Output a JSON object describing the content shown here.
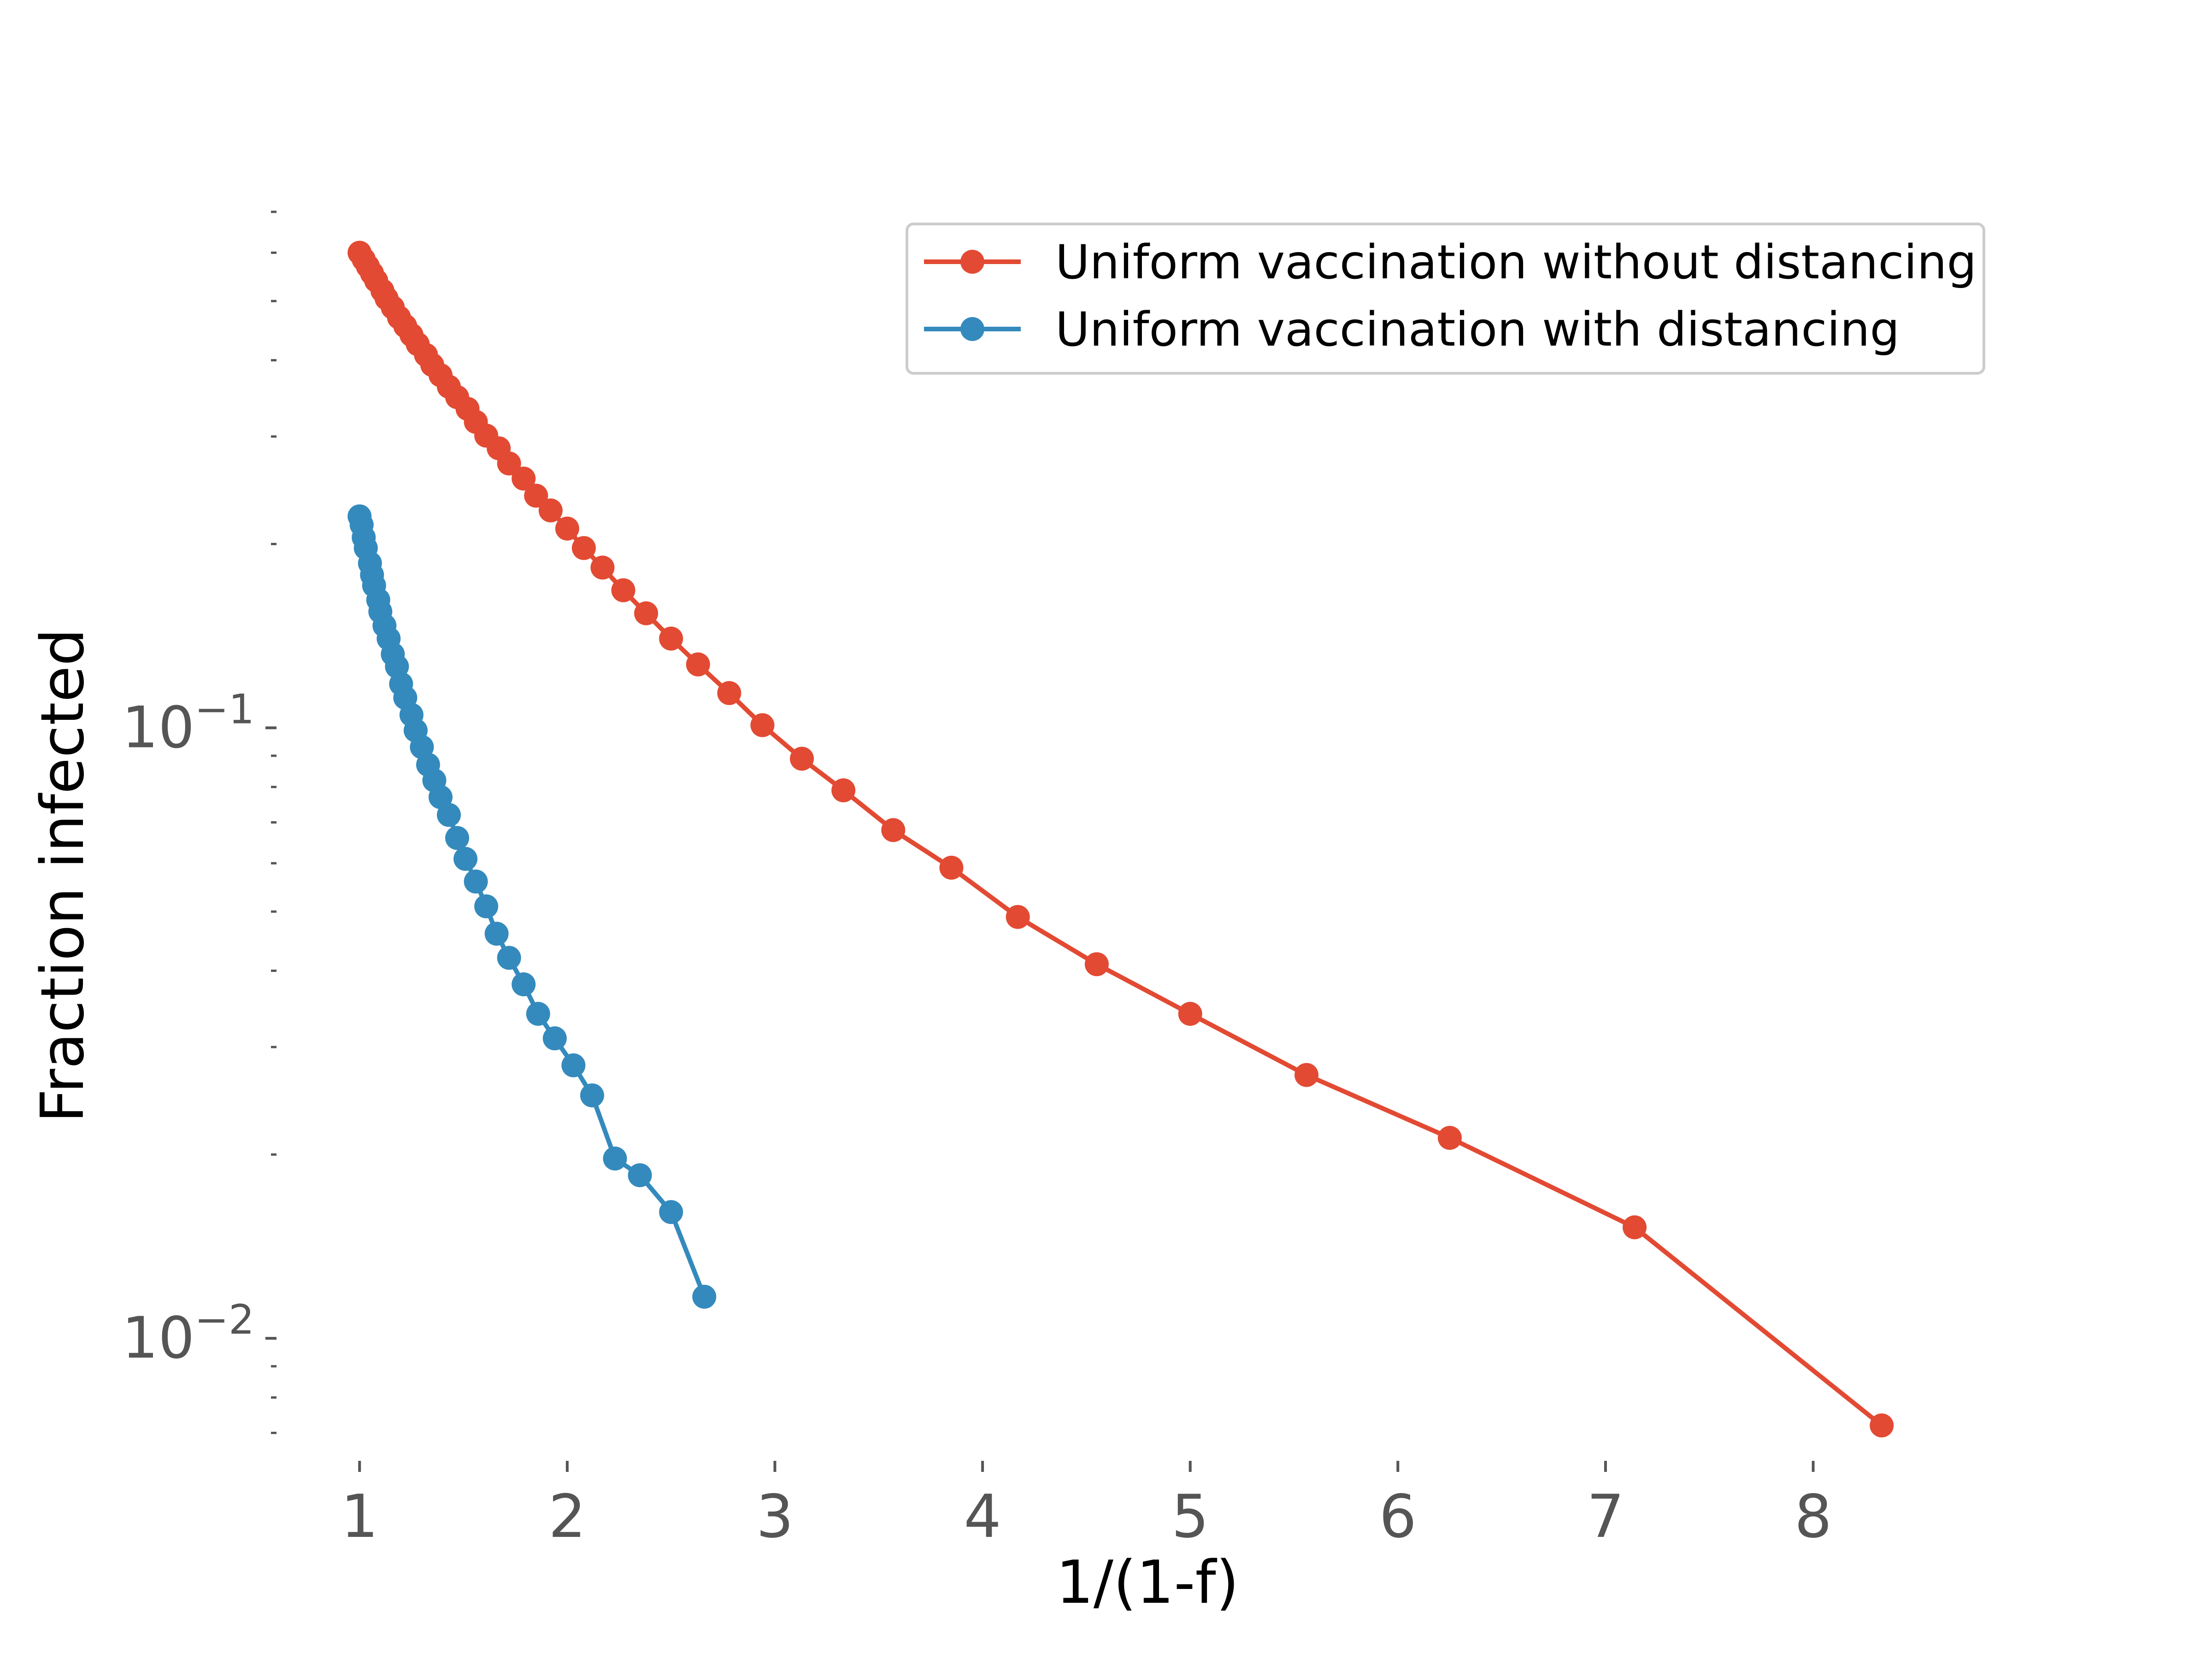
{
  "chart_data": {
    "type": "line",
    "title": "",
    "xlabel": "1/(1-f)",
    "ylabel": "Fraction infected",
    "xlim": [
      0.6,
      8.7
    ],
    "ylim": [
      0.0063,
      0.75
    ],
    "yscale": "log",
    "grid": false,
    "legend_position": "top-right",
    "x_ticks": [
      1,
      2,
      3,
      4,
      5,
      6,
      7,
      8
    ],
    "y_major_ticks": [
      {
        "value": 0.1,
        "base": "10",
        "exp": "−1"
      },
      {
        "value": 0.01,
        "base": "10",
        "exp": "−2"
      }
    ],
    "y_minor_ticks": [
      0.007,
      0.008,
      0.009,
      0.02,
      0.03,
      0.04,
      0.05,
      0.06,
      0.07,
      0.08,
      0.09,
      0.2,
      0.3,
      0.4,
      0.5,
      0.6,
      0.7
    ],
    "series": [
      {
        "name": "Uniform vaccination without distancing",
        "color": "#E24A33",
        "x": [
          1.0,
          1.02,
          1.04,
          1.06,
          1.08,
          1.11,
          1.13,
          1.16,
          1.19,
          1.22,
          1.25,
          1.28,
          1.32,
          1.35,
          1.39,
          1.43,
          1.47,
          1.52,
          1.56,
          1.61,
          1.67,
          1.72,
          1.79,
          1.85,
          1.92,
          2.0,
          2.08,
          2.17,
          2.27,
          2.38,
          2.5,
          2.63,
          2.78,
          2.94,
          3.13,
          3.33,
          3.57,
          3.85,
          4.17,
          4.55,
          5.0,
          5.56,
          6.25,
          7.14,
          8.33
        ],
        "y": [
          0.6,
          0.585,
          0.57,
          0.555,
          0.54,
          0.52,
          0.505,
          0.488,
          0.47,
          0.455,
          0.44,
          0.425,
          0.408,
          0.393,
          0.378,
          0.362,
          0.348,
          0.333,
          0.317,
          0.301,
          0.287,
          0.271,
          0.256,
          0.24,
          0.227,
          0.212,
          0.197,
          0.183,
          0.168,
          0.154,
          0.14,
          0.127,
          0.114,
          0.101,
          0.089,
          0.079,
          0.068,
          0.059,
          0.049,
          0.041,
          0.034,
          0.027,
          0.0213,
          0.0152,
          0.0072
        ]
      },
      {
        "name": "Uniform vaccination with distancing",
        "color": "#348ABD",
        "x": [
          1.0,
          1.01,
          1.02,
          1.03,
          1.05,
          1.06,
          1.07,
          1.09,
          1.1,
          1.12,
          1.14,
          1.16,
          1.18,
          1.2,
          1.22,
          1.25,
          1.27,
          1.3,
          1.33,
          1.36,
          1.39,
          1.43,
          1.47,
          1.51,
          1.56,
          1.61,
          1.66,
          1.72,
          1.79,
          1.86,
          1.94,
          2.03,
          2.12,
          2.23,
          2.35,
          2.5,
          2.66
        ],
        "y": [
          0.222,
          0.215,
          0.205,
          0.197,
          0.186,
          0.178,
          0.171,
          0.162,
          0.155,
          0.147,
          0.14,
          0.132,
          0.126,
          0.118,
          0.112,
          0.105,
          0.099,
          0.093,
          0.087,
          0.082,
          0.077,
          0.072,
          0.066,
          0.061,
          0.056,
          0.051,
          0.046,
          0.042,
          0.038,
          0.034,
          0.031,
          0.028,
          0.025,
          0.0197,
          0.0185,
          0.0161,
          0.0117
        ]
      }
    ]
  }
}
